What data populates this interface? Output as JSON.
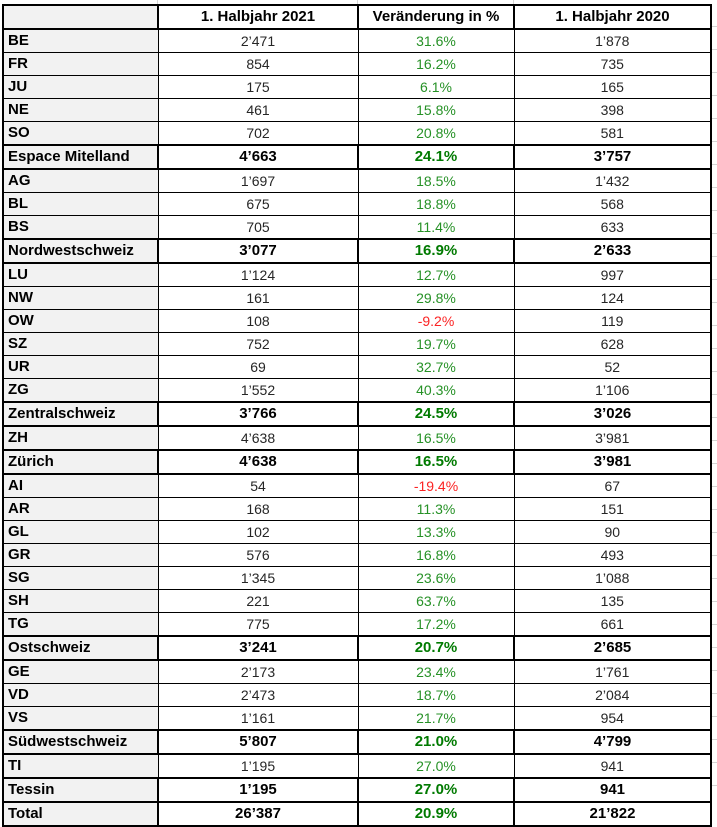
{
  "chart_data": {
    "type": "table",
    "columns": [
      "",
      "1. Halbjahr 2021",
      "Veränderung in %",
      "1. Halbjahr 2020"
    ],
    "rows": [
      {
        "label": "BE",
        "h1_2021": "2’471",
        "change_pct": "31.6%",
        "h1_2020": "1’878",
        "row_style": "canton"
      },
      {
        "label": "FR",
        "h1_2021": "854",
        "change_pct": "16.2%",
        "h1_2020": "735",
        "row_style": "canton"
      },
      {
        "label": "JU",
        "h1_2021": "175",
        "change_pct": "6.1%",
        "h1_2020": "165",
        "row_style": "canton"
      },
      {
        "label": "NE",
        "h1_2021": "461",
        "change_pct": "15.8%",
        "h1_2020": "398",
        "row_style": "canton"
      },
      {
        "label": "SO",
        "h1_2021": "702",
        "change_pct": "20.8%",
        "h1_2020": "581",
        "row_style": "canton"
      },
      {
        "label": "Espace Mitelland",
        "h1_2021": "4’663",
        "change_pct": "24.1%",
        "h1_2020": "3’757",
        "row_style": "region"
      },
      {
        "label": "AG",
        "h1_2021": "1’697",
        "change_pct": "18.5%",
        "h1_2020": "1’432",
        "row_style": "canton"
      },
      {
        "label": "BL",
        "h1_2021": "675",
        "change_pct": "18.8%",
        "h1_2020": "568",
        "row_style": "canton"
      },
      {
        "label": "BS",
        "h1_2021": "705",
        "change_pct": "11.4%",
        "h1_2020": "633",
        "row_style": "canton"
      },
      {
        "label": "Nordwestschweiz",
        "h1_2021": "3’077",
        "change_pct": "16.9%",
        "h1_2020": "2’633",
        "row_style": "region"
      },
      {
        "label": "LU",
        "h1_2021": "1’124",
        "change_pct": "12.7%",
        "h1_2020": "997",
        "row_style": "canton"
      },
      {
        "label": "NW",
        "h1_2021": "161",
        "change_pct": "29.8%",
        "h1_2020": "124",
        "row_style": "canton"
      },
      {
        "label": "OW",
        "h1_2021": "108",
        "change_pct": "-9.2%",
        "h1_2020": "119",
        "row_style": "canton"
      },
      {
        "label": "SZ",
        "h1_2021": "752",
        "change_pct": "19.7%",
        "h1_2020": "628",
        "row_style": "canton"
      },
      {
        "label": "UR",
        "h1_2021": "69",
        "change_pct": "32.7%",
        "h1_2020": "52",
        "row_style": "canton"
      },
      {
        "label": "ZG",
        "h1_2021": "1’552",
        "change_pct": "40.3%",
        "h1_2020": "1’106",
        "row_style": "canton"
      },
      {
        "label": "Zentralschweiz",
        "h1_2021": "3’766",
        "change_pct": "24.5%",
        "h1_2020": "3’026",
        "row_style": "region"
      },
      {
        "label": "ZH",
        "h1_2021": "4’638",
        "change_pct": "16.5%",
        "h1_2020": "3’981",
        "row_style": "canton"
      },
      {
        "label": "Zürich",
        "h1_2021": "4’638",
        "change_pct": "16.5%",
        "h1_2020": "3’981",
        "row_style": "region"
      },
      {
        "label": "AI",
        "h1_2021": "54",
        "change_pct": "-19.4%",
        "h1_2020": "67",
        "row_style": "canton"
      },
      {
        "label": "AR",
        "h1_2021": "168",
        "change_pct": "11.3%",
        "h1_2020": "151",
        "row_style": "canton"
      },
      {
        "label": "GL",
        "h1_2021": "102",
        "change_pct": "13.3%",
        "h1_2020": "90",
        "row_style": "canton"
      },
      {
        "label": "GR",
        "h1_2021": "576",
        "change_pct": "16.8%",
        "h1_2020": "493",
        "row_style": "canton"
      },
      {
        "label": "SG",
        "h1_2021": "1’345",
        "change_pct": "23.6%",
        "h1_2020": "1’088",
        "row_style": "canton"
      },
      {
        "label": "SH",
        "h1_2021": "221",
        "change_pct": "63.7%",
        "h1_2020": "135",
        "row_style": "canton"
      },
      {
        "label": "TG",
        "h1_2021": "775",
        "change_pct": "17.2%",
        "h1_2020": "661",
        "row_style": "canton"
      },
      {
        "label": "Ostschweiz",
        "h1_2021": "3’241",
        "change_pct": "20.7%",
        "h1_2020": "2’685",
        "row_style": "region"
      },
      {
        "label": "GE",
        "h1_2021": "2’173",
        "change_pct": "23.4%",
        "h1_2020": "1’761",
        "row_style": "canton"
      },
      {
        "label": "VD",
        "h1_2021": "2’473",
        "change_pct": "18.7%",
        "h1_2020": "2’084",
        "row_style": "canton"
      },
      {
        "label": "VS",
        "h1_2021": "1’161",
        "change_pct": "21.7%",
        "h1_2020": "954",
        "row_style": "canton"
      },
      {
        "label": "Südwestschweiz",
        "h1_2021": "5’807",
        "change_pct": "21.0%",
        "h1_2020": "4’799",
        "row_style": "region"
      },
      {
        "label": "TI",
        "h1_2021": "1’195",
        "change_pct": "27.0%",
        "h1_2020": "941",
        "row_style": "canton"
      },
      {
        "label": "Tessin",
        "h1_2021": "1’195",
        "change_pct": "27.0%",
        "h1_2020": "941",
        "row_style": "region"
      },
      {
        "label": "Total",
        "h1_2021": "26’387",
        "change_pct": "20.9%",
        "h1_2020": "21’822",
        "row_style": "total"
      }
    ]
  },
  "colors": {
    "positive_green": "#269126",
    "positive_green_bold": "#007a00",
    "negative_red": "#fb2424",
    "label_fill": "#f2f2f2",
    "border_black": "#000000"
  }
}
